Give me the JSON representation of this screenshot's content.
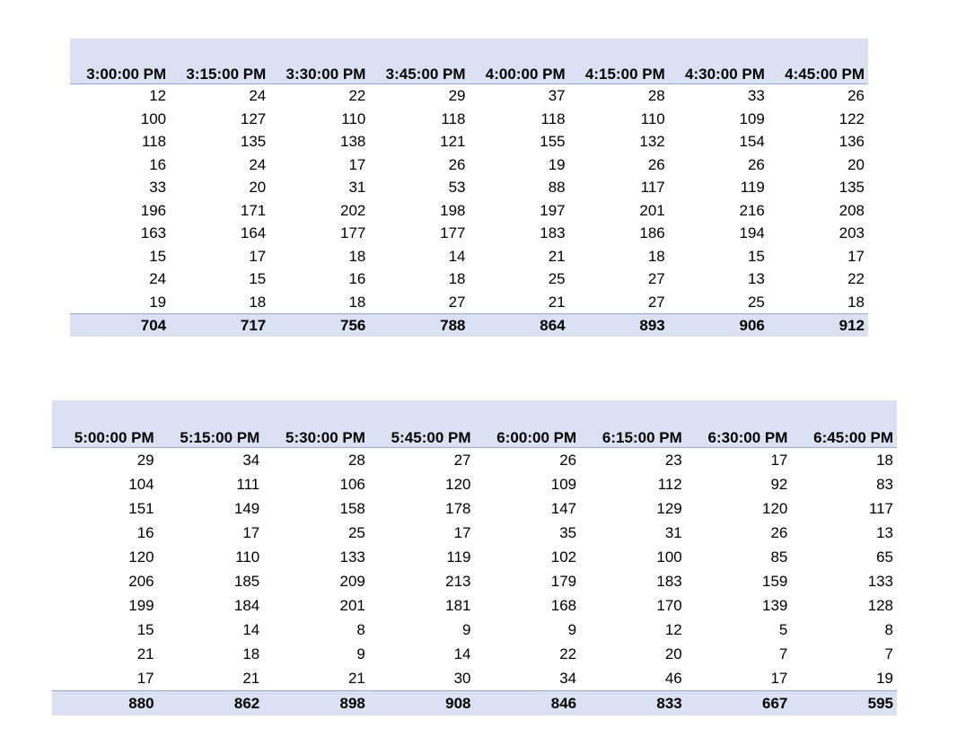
{
  "tables": [
    {
      "headers": [
        "3:00:00 PM",
        "3:15:00 PM",
        "3:30:00 PM",
        "3:45:00 PM",
        "4:00:00 PM",
        "4:15:00 PM",
        "4:30:00 PM",
        "4:45:00 PM"
      ],
      "rows": [
        [
          "12",
          "24",
          "22",
          "29",
          "37",
          "28",
          "33",
          "26"
        ],
        [
          "100",
          "127",
          "110",
          "118",
          "118",
          "110",
          "109",
          "122"
        ],
        [
          "118",
          "135",
          "138",
          "121",
          "155",
          "132",
          "154",
          "136"
        ],
        [
          "16",
          "24",
          "17",
          "26",
          "19",
          "26",
          "26",
          "20"
        ],
        [
          "33",
          "20",
          "31",
          "53",
          "88",
          "117",
          "119",
          "135"
        ],
        [
          "196",
          "171",
          "202",
          "198",
          "197",
          "201",
          "216",
          "208"
        ],
        [
          "163",
          "164",
          "177",
          "177",
          "183",
          "186",
          "194",
          "203"
        ],
        [
          "15",
          "17",
          "18",
          "14",
          "21",
          "18",
          "15",
          "17"
        ],
        [
          "24",
          "15",
          "16",
          "18",
          "25",
          "27",
          "13",
          "22"
        ],
        [
          "19",
          "18",
          "18",
          "27",
          "21",
          "27",
          "25",
          "18"
        ]
      ],
      "totals": [
        "704",
        "717",
        "756",
        "788",
        "864",
        "893",
        "906",
        "912"
      ]
    },
    {
      "headers": [
        "5:00:00 PM",
        "5:15:00 PM",
        "5:30:00 PM",
        "5:45:00 PM",
        "6:00:00 PM",
        "6:15:00 PM",
        "6:30:00 PM",
        "6:45:00 PM"
      ],
      "rows": [
        [
          "29",
          "34",
          "28",
          "27",
          "26",
          "23",
          "17",
          "18"
        ],
        [
          "104",
          "111",
          "106",
          "120",
          "109",
          "112",
          "92",
          "83"
        ],
        [
          "151",
          "149",
          "158",
          "178",
          "147",
          "129",
          "120",
          "117"
        ],
        [
          "16",
          "17",
          "25",
          "17",
          "35",
          "31",
          "26",
          "13"
        ],
        [
          "120",
          "110",
          "133",
          "119",
          "102",
          "100",
          "85",
          "65"
        ],
        [
          "206",
          "185",
          "209",
          "213",
          "179",
          "183",
          "159",
          "133"
        ],
        [
          "199",
          "184",
          "201",
          "181",
          "168",
          "170",
          "139",
          "128"
        ],
        [
          "15",
          "14",
          "8",
          "9",
          "9",
          "12",
          "5",
          "8"
        ],
        [
          "21",
          "18",
          "9",
          "14",
          "22",
          "20",
          "7",
          "7"
        ],
        [
          "17",
          "21",
          "21",
          "30",
          "34",
          "46",
          "17",
          "19"
        ]
      ],
      "totals": [
        "880",
        "862",
        "898",
        "908",
        "846",
        "833",
        "667",
        "595"
      ]
    }
  ]
}
